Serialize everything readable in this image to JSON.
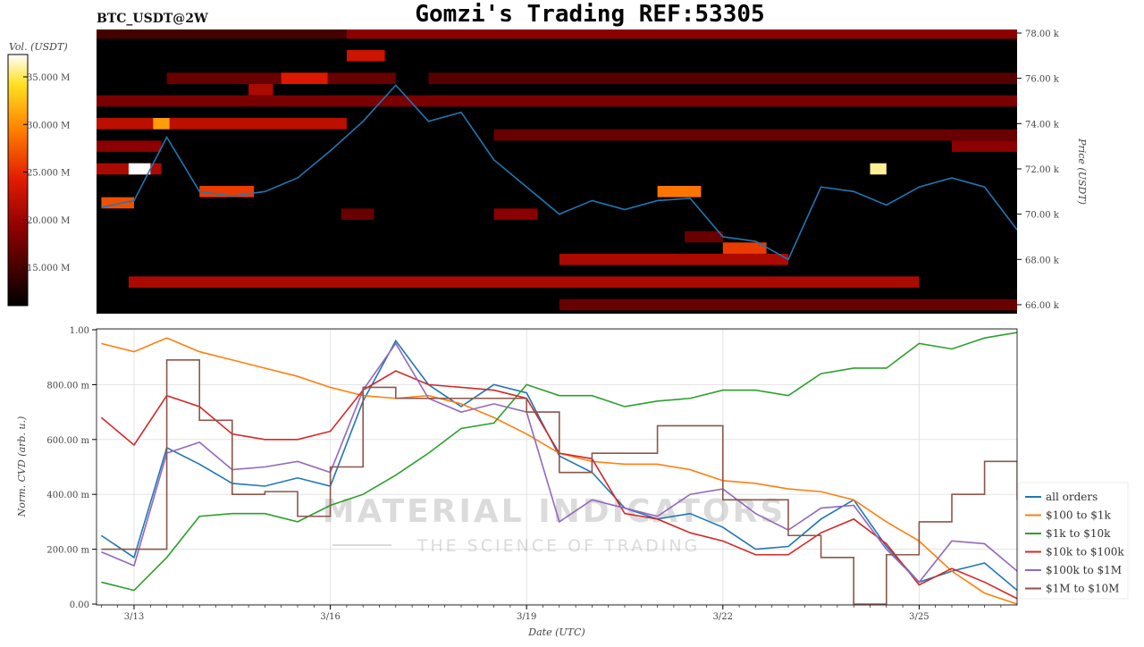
{
  "title": "Gomzi's Trading REF:53305",
  "symbol": "BTC_USDT@2W",
  "watermark": {
    "line1": "MATERIAL INDICATORS",
    "line2": "THE SCIENCE OF TRADING"
  },
  "chart_data": [
    {
      "type": "heatmap",
      "title": "BTC_USDT@2W",
      "ylabel": "Price (USDT)",
      "ylim": [
        65.8,
        78.2
      ],
      "y_ticks": [
        "66.00 k",
        "68.00 k",
        "70.00 k",
        "72.00 k",
        "74.00 k",
        "76.00 k",
        "78.00 k"
      ],
      "y_tick_values": [
        66,
        68,
        70,
        72,
        74,
        76,
        78
      ],
      "colorbar": {
        "label": "Vol. (USDT)",
        "range_M": [
          11,
          37.5
        ],
        "ticks": [
          "15.000 M",
          "20.000 M",
          "25.000 M",
          "30.000 M",
          "35.000 M"
        ],
        "tick_values": [
          15,
          20,
          25,
          30,
          35
        ],
        "colormap": "hot"
      },
      "x_range": [
        "3/12 10:00",
        "3/26 12:00"
      ],
      "bands": [
        {
          "price": 78.0,
          "from": "3/12 10:00",
          "to": "3/26 12:00",
          "vol_M": 15
        },
        {
          "price": 78.0,
          "from": "3/16 06:00",
          "to": "3/26 12:00",
          "vol_M": 19
        },
        {
          "price": 77.0,
          "from": "3/16 06:00",
          "to": "3/16 20:00",
          "vol_M": 23
        },
        {
          "price": 76.0,
          "from": "3/13 12:00",
          "to": "3/17 00:00",
          "vol_M": 17
        },
        {
          "price": 76.0,
          "from": "3/15 06:00",
          "to": "3/15 23:00",
          "vol_M": 24
        },
        {
          "price": 76.0,
          "from": "3/17 12:00",
          "to": "3/26 12:00",
          "vol_M": 16
        },
        {
          "price": 75.5,
          "from": "3/14 18:00",
          "to": "3/15 03:00",
          "vol_M": 21
        },
        {
          "price": 75.0,
          "from": "3/12 10:00",
          "to": "3/26 12:00",
          "vol_M": 18
        },
        {
          "price": 74.0,
          "from": "3/12 10:00",
          "to": "3/16 06:00",
          "vol_M": 22
        },
        {
          "price": 74.0,
          "from": "3/13 07:00",
          "to": "3/13 13:00",
          "vol_M": 31
        },
        {
          "price": 73.5,
          "from": "3/18 12:00",
          "to": "3/26 12:00",
          "vol_M": 17
        },
        {
          "price": 73.0,
          "from": "3/12 10:00",
          "to": "3/13 10:00",
          "vol_M": 19
        },
        {
          "price": 73.0,
          "from": "3/25 12:00",
          "to": "3/26 12:00",
          "vol_M": 19
        },
        {
          "price": 72.0,
          "from": "3/12 10:00",
          "to": "3/13 10:00",
          "vol_M": 21
        },
        {
          "price": 72.0,
          "from": "3/12 22:00",
          "to": "3/13 06:00",
          "vol_M": 38
        },
        {
          "price": 70.0,
          "from": "3/16 04:00",
          "to": "3/16 16:00",
          "vol_M": 17
        },
        {
          "price": 70.0,
          "from": "3/18 12:00",
          "to": "3/19 04:00",
          "vol_M": 19
        },
        {
          "price": 69.0,
          "from": "3/21 10:00",
          "to": "3/22 00:00",
          "vol_M": 17
        },
        {
          "price": 68.0,
          "from": "3/19 12:00",
          "to": "3/23 00:00",
          "vol_M": 21
        },
        {
          "price": 67.0,
          "from": "3/12 22:00",
          "to": "3/25 00:00",
          "vol_M": 21
        },
        {
          "price": 66.0,
          "from": "3/19 12:00",
          "to": "3/26 12:00",
          "vol_M": 17
        },
        {
          "price": 71.0,
          "from": "3/14 00:00",
          "to": "3/14 20:00",
          "vol_M": 26
        },
        {
          "price": 71.0,
          "from": "3/21 00:00",
          "to": "3/21 16:00",
          "vol_M": 29
        },
        {
          "price": 72.0,
          "from": "3/24 06:00",
          "to": "3/24 12:00",
          "vol_M": 36
        },
        {
          "price": 70.5,
          "from": "3/12 12:00",
          "to": "3/13 00:00",
          "vol_M": 27
        },
        {
          "price": 68.5,
          "from": "3/22 00:00",
          "to": "3/22 16:00",
          "vol_M": 26
        }
      ],
      "price_series": {
        "x": [
          "3/12 12:00",
          "3/13 00:00",
          "3/13 12:00",
          "3/14 00:00",
          "3/14 12:00",
          "3/15 00:00",
          "3/15 12:00",
          "3/16 00:00",
          "3/16 12:00",
          "3/17 00:00",
          "3/17 12:00",
          "3/18 00:00",
          "3/18 12:00",
          "3/19 00:00",
          "3/19 12:00",
          "3/20 00:00",
          "3/20 12:00",
          "3/21 00:00",
          "3/21 12:00",
          "3/22 00:00",
          "3/22 12:00",
          "3/23 00:00",
          "3/23 12:00",
          "3/24 00:00",
          "3/24 12:00",
          "3/25 00:00",
          "3/25 12:00",
          "3/26 00:00",
          "3/26 12:00"
        ],
        "y": [
          70.3,
          70.6,
          73.4,
          71.0,
          70.8,
          71.0,
          71.6,
          72.8,
          74.1,
          75.7,
          74.1,
          74.5,
          72.4,
          71.2,
          70.0,
          70.6,
          70.2,
          70.6,
          70.7,
          69.0,
          68.8,
          68.0,
          71.2,
          71.0,
          70.4,
          71.2,
          71.6,
          71.2,
          69.3
        ],
        "color": "#1f77b4"
      }
    },
    {
      "type": "line",
      "xlabel": "Date (UTC)",
      "ylabel": "Norm. CVD (arb. u.)",
      "ylim": [
        0,
        1
      ],
      "grid": true,
      "legend": "right",
      "x_ticks": [
        "3/13",
        "3/16",
        "3/19",
        "3/22",
        "3/25"
      ],
      "y_ticks": [
        "0.00",
        "200.00 m",
        "400.00 m",
        "600.00 m",
        "800.00 m",
        "1.00"
      ],
      "y_tick_values": [
        0,
        0.2,
        0.4,
        0.6,
        0.8,
        1.0
      ],
      "x": [
        "3/12 12:00",
        "3/13 00:00",
        "3/13 12:00",
        "3/14 00:00",
        "3/14 12:00",
        "3/15 00:00",
        "3/15 12:00",
        "3/16 00:00",
        "3/16 12:00",
        "3/17 00:00",
        "3/17 12:00",
        "3/18 00:00",
        "3/18 12:00",
        "3/19 00:00",
        "3/19 12:00",
        "3/20 00:00",
        "3/20 12:00",
        "3/21 00:00",
        "3/21 12:00",
        "3/22 00:00",
        "3/22 12:00",
        "3/23 00:00",
        "3/23 12:00",
        "3/24 00:00",
        "3/24 12:00",
        "3/25 00:00",
        "3/25 12:00",
        "3/26 00:00",
        "3/26 12:00"
      ],
      "series": [
        {
          "name": "all orders",
          "color": "#1f77b4",
          "step": false,
          "values": [
            0.25,
            0.17,
            0.57,
            0.51,
            0.44,
            0.43,
            0.46,
            0.43,
            0.74,
            0.96,
            0.8,
            0.72,
            0.8,
            0.77,
            0.54,
            0.48,
            0.35,
            0.31,
            0.33,
            0.28,
            0.2,
            0.21,
            0.31,
            0.38,
            0.21,
            0.08,
            0.12,
            0.15,
            0.05
          ]
        },
        {
          "name": "$100 to $1k",
          "color": "#ff7f0e",
          "step": false,
          "values": [
            0.95,
            0.92,
            0.97,
            0.92,
            0.89,
            0.86,
            0.83,
            0.79,
            0.76,
            0.75,
            0.76,
            0.73,
            0.68,
            0.62,
            0.55,
            0.52,
            0.51,
            0.51,
            0.49,
            0.45,
            0.44,
            0.42,
            0.41,
            0.38,
            0.3,
            0.23,
            0.12,
            0.04,
            0.0
          ]
        },
        {
          "name": "$1k to $10k",
          "color": "#2ca02c",
          "step": false,
          "values": [
            0.08,
            0.05,
            0.17,
            0.32,
            0.33,
            0.33,
            0.3,
            0.36,
            0.4,
            0.47,
            0.55,
            0.64,
            0.66,
            0.8,
            0.76,
            0.76,
            0.72,
            0.74,
            0.75,
            0.78,
            0.78,
            0.76,
            0.84,
            0.86,
            0.86,
            0.95,
            0.93,
            0.97,
            0.99
          ]
        },
        {
          "name": "$10k to $100k",
          "color": "#d62728",
          "step": false,
          "values": [
            0.68,
            0.58,
            0.76,
            0.72,
            0.62,
            0.6,
            0.6,
            0.63,
            0.78,
            0.85,
            0.8,
            0.79,
            0.78,
            0.75,
            0.55,
            0.53,
            0.33,
            0.31,
            0.26,
            0.23,
            0.18,
            0.18,
            0.26,
            0.31,
            0.22,
            0.07,
            0.13,
            0.08,
            0.02
          ]
        },
        {
          "name": "$100k to $1M",
          "color": "#9467bd",
          "step": false,
          "values": [
            0.19,
            0.14,
            0.55,
            0.59,
            0.49,
            0.5,
            0.52,
            0.48,
            0.78,
            0.95,
            0.75,
            0.7,
            0.73,
            0.7,
            0.3,
            0.38,
            0.35,
            0.32,
            0.4,
            0.42,
            0.33,
            0.27,
            0.35,
            0.36,
            0.2,
            0.08,
            0.23,
            0.22,
            0.12
          ]
        },
        {
          "name": "$1M to $10M",
          "color": "#8c564b",
          "step": true,
          "values": [
            0.2,
            0.2,
            0.89,
            0.67,
            0.4,
            0.41,
            0.32,
            0.5,
            0.79,
            0.75,
            0.75,
            0.75,
            0.75,
            0.7,
            0.48,
            0.55,
            0.55,
            0.65,
            0.65,
            0.38,
            0.38,
            0.25,
            0.17,
            0.0,
            0.18,
            0.3,
            0.4,
            0.52,
            0.38
          ]
        }
      ]
    }
  ]
}
